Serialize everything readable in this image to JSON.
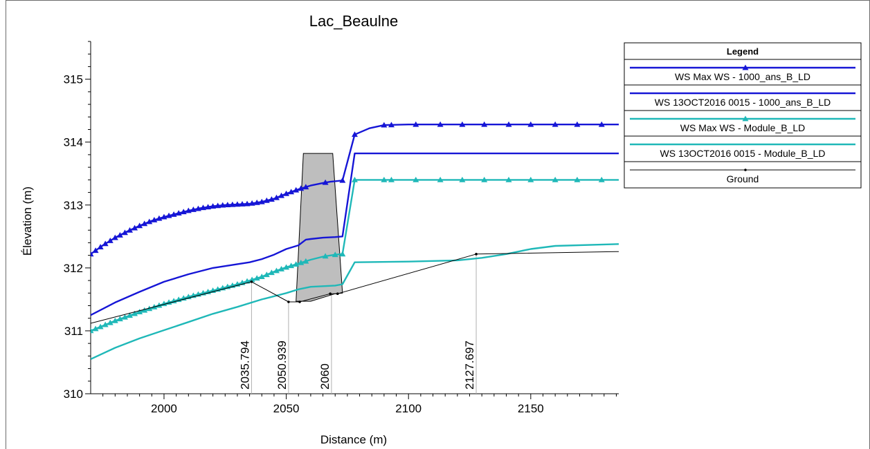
{
  "chart_data": {
    "type": "line",
    "title": "Lac_Beaulne",
    "xlabel": "Distance (m)",
    "ylabel": "Élevation (m)",
    "xlim": [
      1970,
      2186
    ],
    "ylim": [
      310,
      315.6
    ],
    "x_ticks": [
      2000,
      2050,
      2100,
      2150
    ],
    "y_ticks": [
      310,
      311,
      312,
      313,
      314,
      315
    ],
    "legend_title": "Legend",
    "legend_position": "top-right",
    "colors": {
      "blue": "#1515d6",
      "teal": "#1fb8b8",
      "ground": "#000000",
      "structure_fill": "#bebebe"
    },
    "series": [
      {
        "name": "WS  Max WS - 1000_ans_B_LD",
        "color": "#1515d6",
        "marker": "triangle",
        "x": [
          1970,
          1975,
          1980,
          1985,
          1990,
          1995,
          2000,
          2005,
          2010,
          2015,
          2020,
          2025,
          2030,
          2035,
          2040,
          2045,
          2050,
          2055,
          2060,
          2065,
          2068,
          2073,
          2078,
          2084,
          2090,
          2100,
          2120,
          2140,
          2160,
          2186
        ],
        "y": [
          312.22,
          312.36,
          312.48,
          312.58,
          312.67,
          312.75,
          312.81,
          312.86,
          312.91,
          312.95,
          312.98,
          313.0,
          313.01,
          313.02,
          313.05,
          313.1,
          313.18,
          313.25,
          313.31,
          313.35,
          313.37,
          313.39,
          314.12,
          314.22,
          314.27,
          314.28,
          314.28,
          314.28,
          314.28,
          314.28
        ],
        "marker_x": [
          1970,
          1972,
          1974,
          1976,
          1978,
          1980,
          1982,
          1984,
          1986,
          1988,
          1990,
          1992,
          1994,
          1996,
          1998,
          2000,
          2002,
          2004,
          2006,
          2008,
          2010,
          2012,
          2014,
          2016,
          2018,
          2020,
          2022,
          2024,
          2026,
          2028,
          2030,
          2032,
          2034,
          2036,
          2038,
          2040,
          2042,
          2044,
          2046,
          2048,
          2050,
          2052,
          2054,
          2056,
          2058,
          2066,
          2073,
          2078,
          2090,
          2093,
          2103,
          2113,
          2122,
          2131,
          2141,
          2150,
          2160,
          2169,
          2179
        ]
      },
      {
        "name": "WS  13OCT2016 0015 - 1000_ans_B_LD",
        "color": "#1515d6",
        "marker": "none",
        "x": [
          1970,
          1980,
          1990,
          2000,
          2010,
          2020,
          2030,
          2035,
          2040,
          2045,
          2050,
          2055,
          2058,
          2060,
          2065,
          2070,
          2073,
          2078,
          2186
        ],
        "y": [
          311.25,
          311.45,
          311.62,
          311.78,
          311.9,
          312.0,
          312.06,
          312.09,
          312.14,
          312.21,
          312.3,
          312.36,
          312.45,
          312.46,
          312.48,
          312.49,
          312.5,
          313.82,
          313.82
        ]
      },
      {
        "name": "WS  Max WS - Module_B_LD",
        "color": "#1fb8b8",
        "marker": "triangle",
        "x": [
          1970,
          1980,
          1990,
          2000,
          2010,
          2020,
          2030,
          2035,
          2040,
          2045,
          2050,
          2055,
          2060,
          2065,
          2070,
          2073,
          2078,
          2186
        ],
        "y": [
          311.0,
          311.16,
          311.3,
          311.43,
          311.54,
          311.64,
          311.74,
          311.8,
          311.86,
          311.94,
          312.01,
          312.07,
          312.13,
          312.18,
          312.21,
          312.22,
          313.4,
          313.4
        ],
        "marker_x": [
          1970,
          1972,
          1974,
          1976,
          1978,
          1980,
          1982,
          1984,
          1986,
          1988,
          1990,
          1992,
          1994,
          1996,
          1998,
          2000,
          2002,
          2004,
          2006,
          2008,
          2010,
          2012,
          2014,
          2016,
          2018,
          2020,
          2022,
          2024,
          2026,
          2028,
          2030,
          2032,
          2034,
          2036,
          2038,
          2040,
          2042,
          2044,
          2046,
          2048,
          2050,
          2052,
          2054,
          2056,
          2058,
          2066,
          2070,
          2073,
          2078,
          2090,
          2093,
          2103,
          2113,
          2122,
          2131,
          2141,
          2150,
          2160,
          2169,
          2179
        ]
      },
      {
        "name": "WS  13OCT2016 0015 - Module_B_LD",
        "color": "#1fb8b8",
        "marker": "none",
        "x": [
          1970,
          1980,
          1990,
          2000,
          2010,
          2020,
          2030,
          2040,
          2050,
          2055,
          2060,
          2070,
          2073,
          2078,
          2100,
          2120,
          2130,
          2140,
          2150,
          2160,
          2186
        ],
        "y": [
          310.55,
          310.73,
          310.88,
          311.01,
          311.14,
          311.27,
          311.38,
          311.5,
          311.6,
          311.66,
          311.7,
          311.72,
          311.74,
          312.09,
          312.1,
          312.12,
          312.16,
          312.22,
          312.3,
          312.35,
          312.38
        ]
      },
      {
        "name": "Ground",
        "color": "#000000",
        "marker": "dot",
        "x": [
          1970,
          2035.794,
          2050.939,
          2055.5,
          2068,
          2071,
          2127.697,
          2186
        ],
        "y": [
          311.12,
          311.78,
          311.46,
          311.46,
          311.59,
          311.59,
          312.22,
          312.26
        ]
      }
    ],
    "structure": {
      "polygon_x": [
        2054,
        2057,
        2069,
        2073,
        2070,
        2060,
        2054
      ],
      "polygon_y": [
        311.47,
        313.82,
        313.82,
        311.6,
        311.59,
        311.47,
        311.47
      ]
    },
    "stations": [
      {
        "x": 2035.794,
        "label": "2035.794"
      },
      {
        "x": 2050.939,
        "label": "2050.939"
      },
      {
        "x": 2068.5,
        "label": "2060"
      },
      {
        "x": 2127.697,
        "label": "2127.697"
      }
    ]
  }
}
